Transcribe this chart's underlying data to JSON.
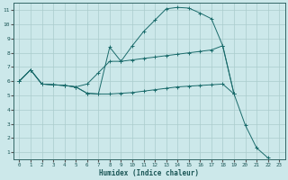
{
  "xlabel": "Humidex (Indice chaleur)",
  "bg_color": "#cce8ea",
  "grid_color": "#aacccc",
  "line_color": "#1a6b6b",
  "xlim": [
    -0.5,
    23.5
  ],
  "ylim": [
    0.5,
    11.5
  ],
  "yticks": [
    1,
    2,
    3,
    4,
    5,
    6,
    7,
    8,
    9,
    10,
    11
  ],
  "xticks": [
    0,
    1,
    2,
    3,
    4,
    5,
    6,
    7,
    8,
    9,
    10,
    11,
    12,
    13,
    14,
    15,
    16,
    17,
    18,
    19,
    20,
    21,
    22,
    23
  ],
  "line1_x": [
    0,
    1,
    2,
    3,
    4,
    5,
    6,
    7,
    8,
    9,
    10,
    11,
    12,
    13,
    14,
    15,
    16,
    17,
    18,
    19,
    20,
    21,
    22
  ],
  "line1_y": [
    6.0,
    6.8,
    5.8,
    5.75,
    5.7,
    5.6,
    5.15,
    5.1,
    8.4,
    7.4,
    8.5,
    9.5,
    10.3,
    11.1,
    11.2,
    11.15,
    10.8,
    10.4,
    8.5,
    5.1,
    2.9,
    1.3,
    0.6
  ],
  "line2_x": [
    0,
    1,
    2,
    3,
    4,
    5,
    6,
    7,
    8,
    9,
    10,
    11,
    12,
    13,
    14,
    15,
    16,
    17,
    18,
    19
  ],
  "line2_y": [
    6.0,
    6.8,
    5.8,
    5.75,
    5.7,
    5.6,
    5.8,
    6.6,
    7.4,
    7.4,
    7.5,
    7.6,
    7.7,
    7.8,
    7.9,
    8.0,
    8.1,
    8.2,
    8.5,
    5.1
  ],
  "line3_x": [
    0,
    1,
    2,
    3,
    4,
    5,
    6,
    7,
    8,
    9,
    10,
    11,
    12,
    13,
    14,
    15,
    16,
    17,
    18,
    19
  ],
  "line3_y": [
    6.0,
    6.8,
    5.8,
    5.75,
    5.7,
    5.6,
    5.15,
    5.1,
    5.1,
    5.15,
    5.2,
    5.3,
    5.4,
    5.5,
    5.6,
    5.65,
    5.7,
    5.75,
    5.8,
    5.1
  ]
}
